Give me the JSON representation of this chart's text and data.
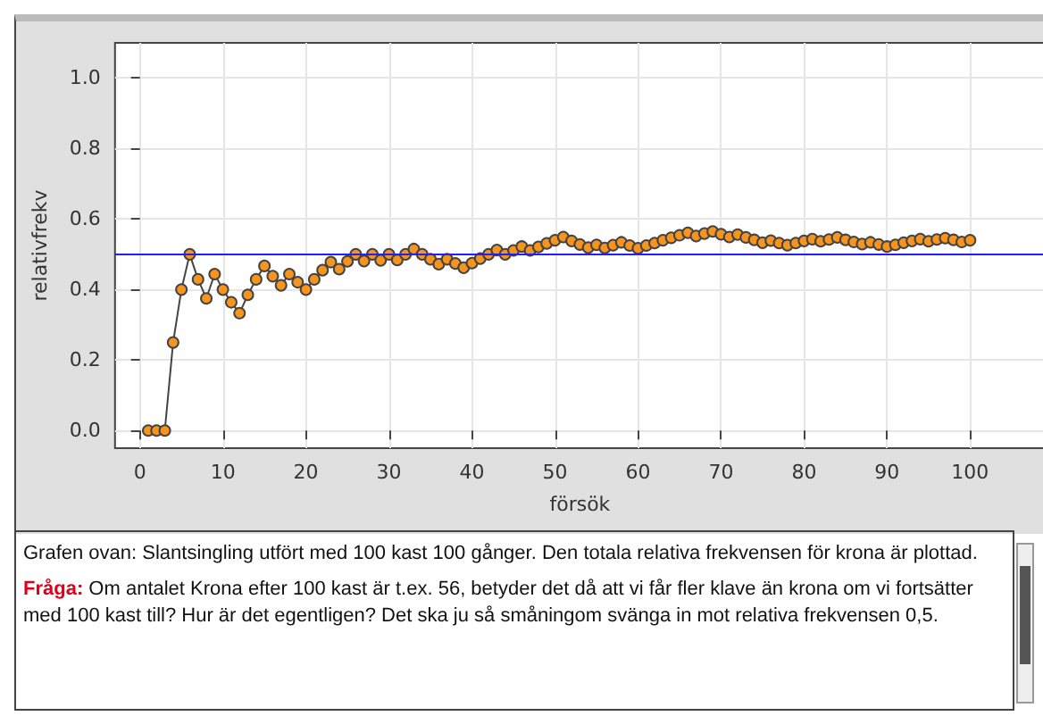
{
  "chart_data": {
    "type": "line",
    "xlabel": "försök",
    "ylabel": "relativfrekv",
    "x": [
      1,
      2,
      3,
      4,
      5,
      6,
      7,
      8,
      9,
      10,
      11,
      12,
      13,
      14,
      15,
      16,
      17,
      18,
      19,
      20,
      21,
      22,
      23,
      24,
      25,
      26,
      27,
      28,
      29,
      30,
      31,
      32,
      33,
      34,
      35,
      36,
      37,
      38,
      39,
      40,
      41,
      42,
      43,
      44,
      45,
      46,
      47,
      48,
      49,
      50,
      51,
      52,
      53,
      54,
      55,
      56,
      57,
      58,
      59,
      60,
      61,
      62,
      63,
      64,
      65,
      66,
      67,
      68,
      69,
      70,
      71,
      72,
      73,
      74,
      75,
      76,
      77,
      78,
      79,
      80,
      81,
      82,
      83,
      84,
      85,
      86,
      87,
      88,
      89,
      90,
      91,
      92,
      93,
      94,
      95,
      96,
      97,
      98,
      99,
      100
    ],
    "series": [
      {
        "color": "#f7941d",
        "values": [
          0,
          0,
          0,
          0.25,
          0.4,
          0.5,
          0.429,
          0.375,
          0.444,
          0.4,
          0.364,
          0.333,
          0.385,
          0.429,
          0.467,
          0.438,
          0.412,
          0.444,
          0.421,
          0.4,
          0.429,
          0.455,
          0.478,
          0.458,
          0.48,
          0.5,
          0.481,
          0.5,
          0.483,
          0.5,
          0.484,
          0.5,
          0.515,
          0.5,
          0.486,
          0.472,
          0.486,
          0.474,
          0.462,
          0.475,
          0.488,
          0.5,
          0.512,
          0.5,
          0.511,
          0.522,
          0.511,
          0.521,
          0.531,
          0.54,
          0.549,
          0.538,
          0.528,
          0.519,
          0.527,
          0.518,
          0.526,
          0.534,
          0.525,
          0.517,
          0.525,
          0.532,
          0.54,
          0.547,
          0.554,
          0.561,
          0.552,
          0.559,
          0.565,
          0.557,
          0.549,
          0.556,
          0.548,
          0.541,
          0.533,
          0.539,
          0.532,
          0.526,
          0.532,
          0.538,
          0.543,
          0.537,
          0.542,
          0.548,
          0.541,
          0.535,
          0.529,
          0.534,
          0.528,
          0.522,
          0.527,
          0.533,
          0.538,
          0.543,
          0.537,
          0.542,
          0.546,
          0.541,
          0.535,
          0.54
        ]
      }
    ],
    "xlim": [
      -3,
      109
    ],
    "xticks": [
      0,
      10,
      20,
      30,
      40,
      50,
      60,
      70,
      80,
      90,
      100
    ],
    "ylim": [
      -0.05,
      1.1
    ],
    "yticks": [
      {
        "value": 0,
        "label": "0.0"
      },
      {
        "value": 0.2,
        "label": "0.2"
      },
      {
        "value": 0.4,
        "label": "0.4"
      },
      {
        "value": 0.6,
        "label": "0.6"
      },
      {
        "value": 0.8,
        "label": "0.8"
      },
      {
        "value": 1,
        "label": "1.0"
      }
    ],
    "ref_lines": [
      {
        "axis": "y",
        "value": 0.5,
        "color": "#2020ff"
      }
    ],
    "grid": true,
    "marker": "circle",
    "line_style": "solid",
    "annotations": [
      "Grafen ovan: Slantsingling utfört med 100 kast 100 gånger. Den totala relativa frekvensen för krona är plottad.",
      "Fråga:",
      "Om antalet Krona efter 100 kast är t.ex. 56, betyder det då att vi får fler klave än krona om vi fortsätter med 100 kast till? Hur är det egentligen? Det ska ju så småningom svänga in mot relativa frekvensen 0,5."
    ]
  }
}
